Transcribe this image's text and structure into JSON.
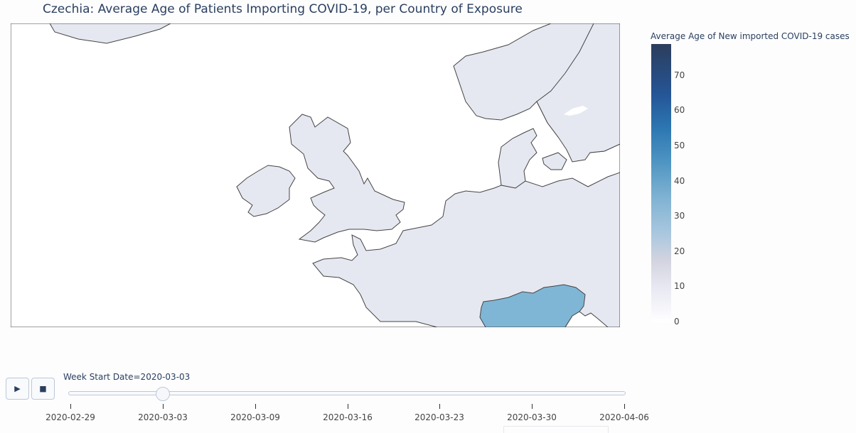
{
  "title": "Czechia: Average Age of Patients Importing COVID-19, per Country of Exposure",
  "colorbar": {
    "title": "Average Age of New imported COVID-19 cases",
    "range": [
      0,
      79
    ],
    "ticks": [
      "70",
      "60",
      "50",
      "40",
      "30",
      "20",
      "10",
      "0"
    ],
    "colorscale": [
      "#ffffff",
      "#e8e9f3",
      "#d3d4df",
      "#a9c7df",
      "#7fb2d2",
      "#4d94c2",
      "#2c76b1",
      "#255596",
      "#2c3d5c"
    ]
  },
  "map": {
    "land_color": "#e6e8f1",
    "border_color": "#444444",
    "highlight_color": "#7fb6d5",
    "highlighted_country_value": 39
  },
  "controls": {
    "play_icon": "play-icon",
    "stop_icon": "stop-icon"
  },
  "slider": {
    "current_label": "Week Start Date=2020-03-03",
    "current_index": 1,
    "steps": [
      "2020-02-29",
      "2020-03-03",
      "2020-03-09",
      "2020-03-16",
      "2020-03-23",
      "2020-03-30",
      "2020-04-06"
    ]
  }
}
